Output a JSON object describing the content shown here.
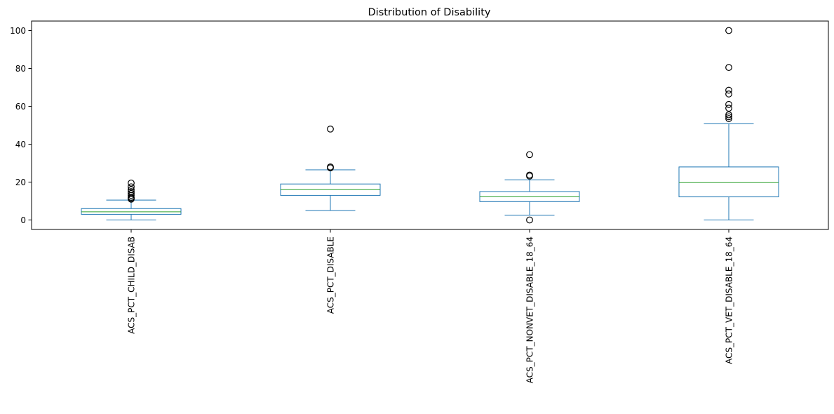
{
  "chart_data": {
    "type": "box",
    "title": "Distribution of Disability",
    "xlabel": "",
    "ylabel": "",
    "ylim": [
      -5,
      105
    ],
    "yticks": [
      0,
      20,
      40,
      60,
      80,
      100
    ],
    "grid": false,
    "legend": "none",
    "colors": {
      "box": "#1f77b4",
      "median": "#2ca02c",
      "flier": "#000000"
    },
    "categories": [
      "ACS_PCT_CHILD_DISAB",
      "ACS_PCT_DISABLE",
      "ACS_PCT_NONVET_DISABLE_18_64",
      "ACS_PCT_VET_DISABLE_18_64"
    ],
    "boxes": [
      {
        "whisker_low": 0,
        "q1": 3,
        "median": 4.3,
        "q3": 6,
        "whisker_high": 10.5,
        "fliers": [
          11,
          11.5,
          12,
          13,
          14,
          15,
          16,
          17.5,
          19.5
        ]
      },
      {
        "whisker_low": 5,
        "q1": 13,
        "median": 16,
        "q3": 19,
        "whisker_high": 26.5,
        "fliers": [
          27.5,
          28,
          48
        ]
      },
      {
        "whisker_low": 2.5,
        "q1": 9.7,
        "median": 12.2,
        "q3": 15,
        "whisker_high": 21.2,
        "fliers": [
          0,
          23.2,
          23.7,
          34.5
        ]
      },
      {
        "whisker_low": 0,
        "q1": 12.2,
        "median": 19.7,
        "q3": 28,
        "whisker_high": 50.8,
        "fliers": [
          53.5,
          54.5,
          55.5,
          59,
          61,
          66.5,
          68.5,
          80.5,
          100
        ]
      }
    ]
  }
}
